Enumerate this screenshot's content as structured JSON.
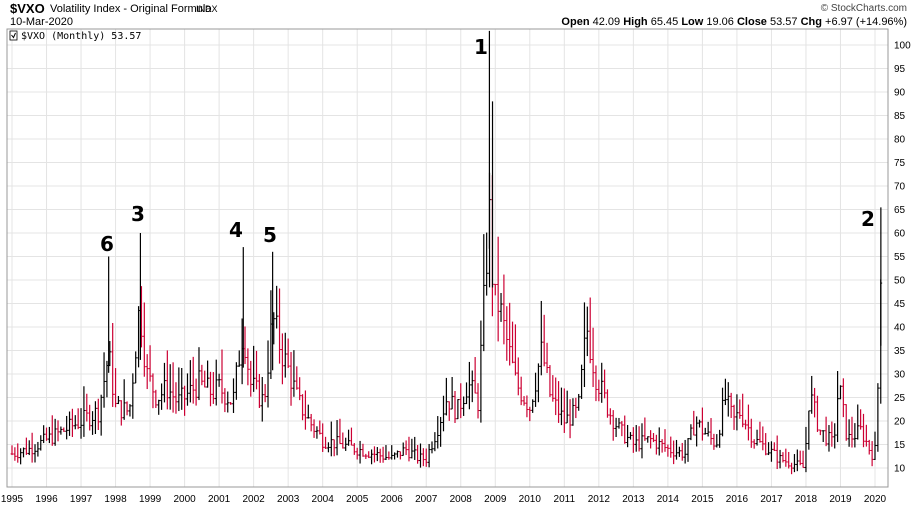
{
  "header": {
    "symbol": "$VXO",
    "name": "Volatility Index - Original Formula",
    "exchange": "INDX",
    "date": "10-Mar-2020",
    "credit": "© StockCharts.com",
    "open_label": "Open",
    "open_value": "42.09",
    "high_label": "High",
    "high_value": "65.45",
    "low_label": "Low",
    "low_value": "19.06",
    "close_label": "Close",
    "close_value": "53.57",
    "chg_label": "Chg",
    "chg_value": "+6.97 (+14.96%)"
  },
  "legend": "$VXO (Monthly) 53.57",
  "colors": {
    "up": "#000000",
    "down": "#cc0033",
    "grid": "#e4e4e4",
    "border": "#999999"
  },
  "chart_data": {
    "type": "line",
    "title": "$VXO Volatility Index - Original Formula",
    "ylim": [
      5,
      104
    ],
    "y_ticks": [
      10,
      15,
      20,
      25,
      30,
      35,
      40,
      45,
      50,
      55,
      60,
      65,
      70,
      75,
      80,
      85,
      90,
      95,
      100
    ],
    "x_ticks": [
      "1995",
      "1996",
      "1997",
      "1998",
      "1999",
      "2000",
      "2001",
      "2002",
      "2003",
      "2004",
      "2005",
      "2006",
      "2007",
      "2008",
      "2009",
      "2010",
      "2011",
      "2012",
      "2013",
      "2014",
      "2015",
      "2016",
      "2017",
      "2018",
      "2019",
      "2020"
    ],
    "grid": true,
    "series": [
      {
        "x": [
          1995.0,
          1995.5,
          1996.0,
          1996.5,
          1997.0,
          1997.5,
          1997.8,
          1998.0,
          1998.4,
          1998.7,
          1998.9,
          1999.2,
          1999.5,
          1999.8,
          2000.0,
          2000.4,
          2000.8,
          2001.0,
          2001.4,
          2001.7,
          2001.9,
          2002.3,
          2002.55,
          2002.8,
          2003.0,
          2003.3,
          2003.6,
          2004.0,
          2004.5,
          2005.0,
          2005.5,
          2006.0,
          2006.4,
          2006.8,
          2007.0,
          2007.3,
          2007.6,
          2007.9,
          2008.2,
          2008.5,
          2008.75,
          2008.85,
          2008.95,
          2009.1,
          2009.3,
          2009.6,
          2010.0,
          2010.35,
          2010.6,
          2011.0,
          2011.4,
          2011.65,
          2011.9,
          2012.3,
          2012.6,
          2013.0,
          2013.5,
          2014.0,
          2014.5,
          2014.8,
          2015.0,
          2015.4,
          2015.65,
          2015.9,
          2016.1,
          2016.5,
          2016.9,
          2017.2,
          2017.6,
          2017.95,
          2018.1,
          2018.4,
          2018.8,
          2018.95,
          2019.2,
          2019.6,
          2019.9,
          2020.05,
          2020.15
        ],
        "y": [
          13,
          14,
          16,
          18,
          20,
          22,
          34,
          23,
          22,
          45,
          30,
          25,
          27,
          24,
          25,
          28,
          26,
          27,
          24,
          40,
          28,
          24,
          42,
          35,
          31,
          24,
          20,
          16,
          15,
          14,
          13,
          12,
          14,
          12,
          12,
          18,
          25,
          22,
          28,
          24,
          55,
          65,
          45,
          45,
          38,
          28,
          23,
          35,
          25,
          20,
          22,
          40,
          30,
          22,
          18,
          15,
          16,
          14,
          13,
          20,
          18,
          15,
          25,
          20,
          22,
          16,
          14,
          12,
          11,
          10,
          26,
          18,
          15,
          28,
          16,
          18,
          13,
          14,
          53.57
        ]
      }
    ],
    "annotations": [
      "1",
      "2",
      "3",
      "4",
      "5",
      "6"
    ]
  }
}
